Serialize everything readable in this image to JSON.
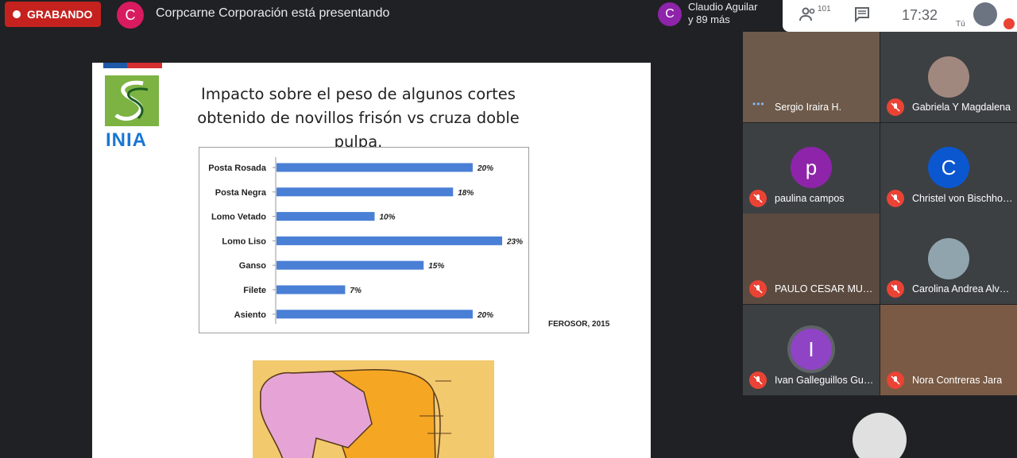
{
  "topbar": {
    "recording_label": "GRABANDO",
    "presenter_initial": "C",
    "presenter_text": "Corpcarne Corporación está presentando",
    "speaker_initial": "C",
    "speaker_name": "Claudio Aguilar",
    "speaker_more": "y 89 más",
    "participant_count": "101",
    "time": "17:32",
    "self_label": "Tú",
    "colors": {
      "recording": "#c5221f",
      "presenter_avatar": "#d81b60",
      "speaker_avatar": "#8e24aa"
    },
    "icons": [
      "people-icon",
      "chat-icon",
      "mic-off-icon"
    ]
  },
  "slide": {
    "title": "Impacto sobre el peso de algunos cortes obtenido de novillos frisón vs cruza doble pulpa.",
    "logo_text": "INIA",
    "source": "FEROSOR, 2015"
  },
  "chart_data": {
    "type": "bar",
    "orientation": "horizontal",
    "categories": [
      "Posta Rosada",
      "Posta Negra",
      "Lomo Vetado",
      "Lomo Liso",
      "Ganso",
      "Filete",
      "Asiento"
    ],
    "values": [
      20,
      18,
      10,
      23,
      15,
      7,
      20
    ],
    "data_labels": [
      "20%",
      "18%",
      "10%",
      "23%",
      "15%",
      "7%",
      "20%"
    ],
    "bar_color": "#4a7fd6",
    "grid": false
  },
  "participants": [
    {
      "name": "Sergio Iraira H.",
      "type": "video",
      "speaking": true
    },
    {
      "name": "Gabriela Y Magdalena",
      "type": "photo",
      "muted": true
    },
    {
      "name": "paulina campos",
      "type": "letter",
      "initial": "p",
      "color": "#8e24aa",
      "muted": true
    },
    {
      "name": "Christel von Bischhoffshausen",
      "type": "letter",
      "initial": "C",
      "color": "#0b57d0",
      "muted": true
    },
    {
      "name": "PAULO CESAR MUÑOZ",
      "type": "video",
      "muted": true
    },
    {
      "name": "Carolina Andrea Alvarez",
      "type": "photo",
      "muted": true
    },
    {
      "name": "Ivan Galleguillos Guerrero",
      "type": "letter",
      "initial": "I",
      "color": "#8e44c4",
      "muted": true
    },
    {
      "name": "Nora Contreras Jara",
      "type": "video",
      "muted": true
    }
  ]
}
